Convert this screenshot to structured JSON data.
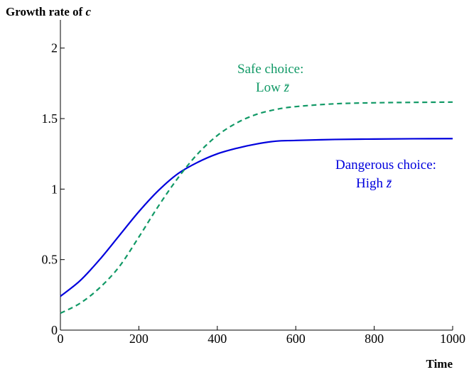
{
  "chart_data": {
    "type": "line",
    "title": "",
    "ylabel_prefix": "Growth rate of ",
    "ylabel_var": "c",
    "xlabel": "Time",
    "xlim": [
      0,
      1000
    ],
    "ylim": [
      0,
      2.2
    ],
    "xticks": [
      {
        "value": 0,
        "label": "0"
      },
      {
        "value": 200,
        "label": "200"
      },
      {
        "value": 400,
        "label": "400"
      },
      {
        "value": 600,
        "label": "600"
      },
      {
        "value": 800,
        "label": "800"
      },
      {
        "value": 1000,
        "label": "1000"
      }
    ],
    "yticks": [
      {
        "value": 0,
        "label": "0"
      },
      {
        "value": 0.5,
        "label": "0.5"
      },
      {
        "value": 1,
        "label": "1"
      },
      {
        "value": 1.5,
        "label": "1.5"
      },
      {
        "value": 2,
        "label": "2"
      }
    ],
    "grid": false,
    "series": [
      {
        "color": "#0000dd",
        "style": "solid",
        "x": [
          0,
          50,
          100,
          150,
          200,
          250,
          300,
          350,
          400,
          450,
          500,
          550,
          600,
          700,
          800,
          900,
          1000
        ],
        "y": [
          0.24,
          0.35,
          0.5,
          0.67,
          0.84,
          0.99,
          1.11,
          1.19,
          1.25,
          1.29,
          1.32,
          1.34,
          1.345,
          1.352,
          1.355,
          1.357,
          1.358
        ]
      },
      {
        "color": "#119966",
        "style": "dashed",
        "x": [
          0,
          50,
          100,
          150,
          200,
          250,
          300,
          350,
          400,
          450,
          500,
          550,
          600,
          700,
          800,
          900,
          1000
        ],
        "y": [
          0.12,
          0.19,
          0.3,
          0.45,
          0.66,
          0.88,
          1.08,
          1.25,
          1.38,
          1.47,
          1.53,
          1.565,
          1.585,
          1.605,
          1.612,
          1.615,
          1.617
        ]
      }
    ],
    "annotations": [
      {
        "line1": "Safe choice:",
        "line2_prefix": "Low ",
        "line2_var": "z̄",
        "color": "#119966"
      },
      {
        "line1": "Dangerous choice:",
        "line2_prefix": "High ",
        "line2_var": "z̄",
        "color": "#0000dd"
      }
    ]
  }
}
